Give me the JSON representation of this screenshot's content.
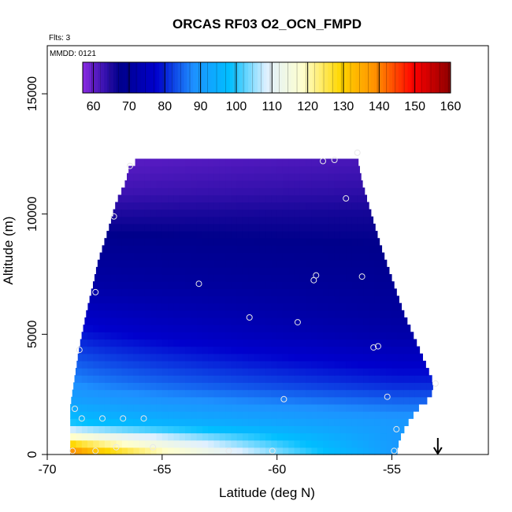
{
  "chart_data": {
    "type": "heatmap",
    "title": "ORCAS RF03 O2_OCN_FMPD",
    "flights_note": "Flts: 3",
    "date_note": "MMDD: 0121",
    "xlabel": "Latitude (deg N)",
    "ylabel": "Altitude (m)",
    "xlim": [
      -70,
      -50.8
    ],
    "ylim": [
      0,
      17000
    ],
    "x_ticks": [
      -70,
      -65,
      -60,
      -55
    ],
    "y_ticks": [
      0,
      5000,
      10000,
      15000
    ],
    "colorbar": {
      "min": 57,
      "max": 160,
      "ticks": [
        60,
        70,
        80,
        90,
        100,
        110,
        120,
        130,
        140,
        150,
        160
      ],
      "colors": [
        "#8a2be2",
        "#00008b",
        "#0000cd",
        "#1e90ff",
        "#00bfff",
        "#e0f0ff",
        "#ffffcc",
        "#ffd700",
        "#ff8c00",
        "#ff0000",
        "#8b0000"
      ]
    },
    "field": {
      "top_altitude_at_latitude": [
        [
          -69.0,
          2000
        ],
        [
          -68.6,
          4500
        ],
        [
          -68.3,
          5900
        ],
        [
          -68.0,
          7100
        ],
        [
          -67.8,
          8000
        ],
        [
          -67.3,
          9500
        ],
        [
          -67.0,
          10500
        ],
        [
          -66.6,
          11300
        ],
        [
          -66.4,
          12100
        ],
        [
          -65.5,
          12300
        ],
        [
          -62.0,
          12300
        ],
        [
          -56.5,
          12300
        ],
        [
          -56.3,
          11300
        ],
        [
          -55.9,
          10000
        ],
        [
          -55.5,
          8700
        ],
        [
          -55.0,
          7300
        ],
        [
          -54.5,
          5900
        ],
        [
          -54.0,
          4800
        ],
        [
          -53.6,
          3900
        ],
        [
          -53.2,
          3000
        ],
        [
          -53.3,
          2400
        ],
        [
          -53.9,
          1900
        ],
        [
          -54.4,
          1200
        ],
        [
          -54.7,
          600
        ],
        [
          -54.8,
          0
        ]
      ],
      "profile_altitude_m": [
        0,
        150,
        400,
        700,
        1000,
        1300,
        1700,
        2200,
        3000,
        4000,
        5000,
        6000,
        7000,
        8000,
        9000,
        10000,
        11000,
        12300
      ],
      "profile_south_value": [
        150,
        140,
        132,
        122,
        110,
        100,
        96,
        92,
        88,
        84,
        80,
        76,
        72,
        70,
        68,
        65,
        62,
        60
      ],
      "profile_north_value": [
        90,
        90,
        90,
        90,
        90,
        90,
        88,
        85,
        80,
        76,
        72,
        70,
        69,
        68,
        67,
        66,
        64,
        62
      ]
    },
    "observations": [
      [
        -68.9,
        150
      ],
      [
        -67.9,
        150
      ],
      [
        -67.0,
        300
      ],
      [
        -65.4,
        300
      ],
      [
        -62.1,
        150
      ],
      [
        -60.2,
        150
      ],
      [
        -54.9,
        150
      ],
      [
        -68.8,
        1900
      ],
      [
        -68.5,
        1500
      ],
      [
        -67.6,
        1500
      ],
      [
        -66.7,
        1500
      ],
      [
        -65.8,
        1500
      ],
      [
        -59.7,
        2300
      ],
      [
        -54.8,
        1050
      ],
      [
        -55.2,
        2400
      ],
      [
        -53.1,
        2950
      ],
      [
        -68.6,
        4350
      ],
      [
        -67.9,
        6750
      ],
      [
        -63.4,
        7100
      ],
      [
        -61.2,
        5700
      ],
      [
        -59.1,
        5500
      ],
      [
        -58.4,
        7250
      ],
      [
        -58.3,
        7450
      ],
      [
        -56.3,
        7400
      ],
      [
        -55.8,
        4450
      ],
      [
        -55.6,
        4500
      ],
      [
        -67.1,
        9900
      ],
      [
        -66.4,
        12000
      ],
      [
        -58.0,
        12200
      ],
      [
        -57.5,
        12250
      ],
      [
        -57.0,
        10650
      ],
      [
        -56.5,
        12550
      ]
    ],
    "arrow_latitude": -53.0
  }
}
